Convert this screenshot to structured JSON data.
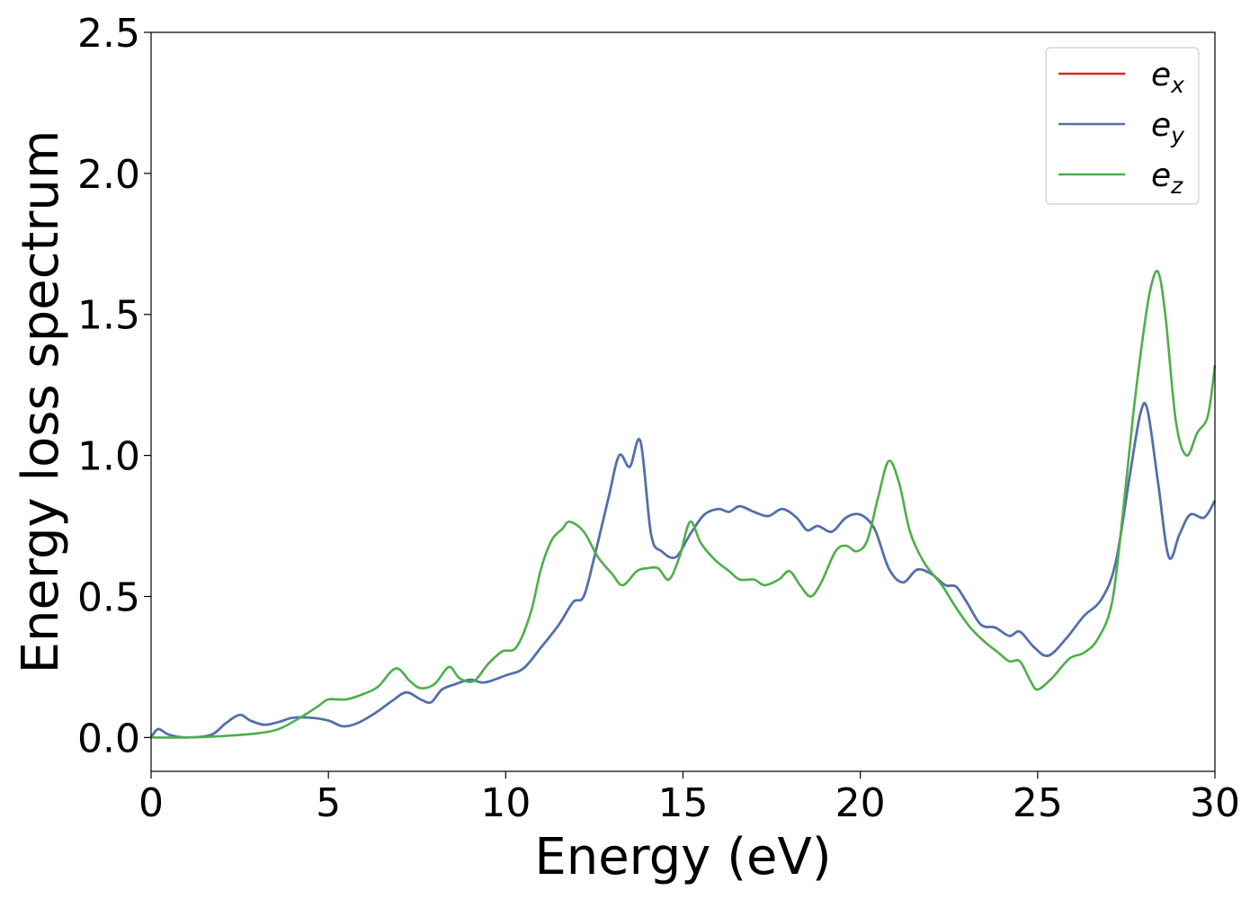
{
  "chart_data": {
    "type": "line",
    "xlabel": "Energy (eV)",
    "ylabel": "Energy loss spectrum",
    "xlim": [
      0,
      30
    ],
    "ylim": [
      -0.12,
      2.5
    ],
    "xticks": [
      0,
      5,
      10,
      15,
      20,
      25,
      30
    ],
    "yticks": [
      0.0,
      0.5,
      1.0,
      1.5,
      2.0,
      2.5
    ],
    "xtick_labels": [
      "0",
      "5",
      "10",
      "15",
      "20",
      "25",
      "30"
    ],
    "ytick_labels": [
      "0.0",
      "0.5",
      "1.0",
      "1.5",
      "2.0",
      "2.5"
    ],
    "grid": false,
    "legend_position": "top-right",
    "series": [
      {
        "name": "e",
        "subscript": "x",
        "color": "#d62728",
        "points": [
          [
            0,
            0.0
          ],
          [
            0.2,
            0.03
          ],
          [
            0.5,
            0.01
          ],
          [
            1.0,
            0.0
          ],
          [
            1.7,
            0.01
          ],
          [
            2.1,
            0.05
          ],
          [
            2.5,
            0.08
          ],
          [
            2.8,
            0.06
          ],
          [
            3.2,
            0.045
          ],
          [
            3.6,
            0.055
          ],
          [
            4.0,
            0.07
          ],
          [
            4.5,
            0.07
          ],
          [
            5.0,
            0.06
          ],
          [
            5.4,
            0.04
          ],
          [
            5.8,
            0.05
          ],
          [
            6.3,
            0.085
          ],
          [
            6.8,
            0.13
          ],
          [
            7.2,
            0.16
          ],
          [
            7.6,
            0.135
          ],
          [
            7.9,
            0.125
          ],
          [
            8.2,
            0.17
          ],
          [
            8.6,
            0.19
          ],
          [
            9.0,
            0.205
          ],
          [
            9.4,
            0.195
          ],
          [
            10.0,
            0.22
          ],
          [
            10.5,
            0.245
          ],
          [
            11.0,
            0.32
          ],
          [
            11.5,
            0.4
          ],
          [
            11.9,
            0.48
          ],
          [
            12.2,
            0.5
          ],
          [
            12.5,
            0.64
          ],
          [
            12.9,
            0.85
          ],
          [
            13.2,
            1.0
          ],
          [
            13.5,
            0.96
          ],
          [
            13.8,
            1.05
          ],
          [
            14.1,
            0.72
          ],
          [
            14.4,
            0.66
          ],
          [
            14.8,
            0.64
          ],
          [
            15.2,
            0.72
          ],
          [
            15.6,
            0.79
          ],
          [
            16.0,
            0.81
          ],
          [
            16.3,
            0.8
          ],
          [
            16.6,
            0.82
          ],
          [
            17.0,
            0.8
          ],
          [
            17.4,
            0.785
          ],
          [
            17.8,
            0.81
          ],
          [
            18.2,
            0.78
          ],
          [
            18.5,
            0.735
          ],
          [
            18.8,
            0.75
          ],
          [
            19.2,
            0.73
          ],
          [
            19.6,
            0.78
          ],
          [
            20.0,
            0.79
          ],
          [
            20.4,
            0.74
          ],
          [
            20.8,
            0.6
          ],
          [
            21.2,
            0.55
          ],
          [
            21.6,
            0.595
          ],
          [
            22.0,
            0.58
          ],
          [
            22.4,
            0.54
          ],
          [
            22.7,
            0.535
          ],
          [
            23.0,
            0.48
          ],
          [
            23.4,
            0.4
          ],
          [
            23.8,
            0.39
          ],
          [
            24.2,
            0.36
          ],
          [
            24.5,
            0.375
          ],
          [
            24.9,
            0.32
          ],
          [
            25.3,
            0.29
          ],
          [
            25.8,
            0.35
          ],
          [
            26.3,
            0.43
          ],
          [
            26.8,
            0.49
          ],
          [
            27.2,
            0.62
          ],
          [
            27.6,
            0.93
          ],
          [
            27.9,
            1.15
          ],
          [
            28.1,
            1.16
          ],
          [
            28.4,
            0.9
          ],
          [
            28.7,
            0.64
          ],
          [
            29.0,
            0.72
          ],
          [
            29.3,
            0.79
          ],
          [
            29.7,
            0.78
          ],
          [
            30.0,
            0.84
          ]
        ]
      },
      {
        "name": "e",
        "subscript": "y",
        "color": "#4c72b0",
        "points": [
          [
            0,
            0.0
          ],
          [
            0.2,
            0.03
          ],
          [
            0.5,
            0.01
          ],
          [
            1.0,
            0.0
          ],
          [
            1.7,
            0.01
          ],
          [
            2.1,
            0.05
          ],
          [
            2.5,
            0.08
          ],
          [
            2.8,
            0.06
          ],
          [
            3.2,
            0.045
          ],
          [
            3.6,
            0.055
          ],
          [
            4.0,
            0.07
          ],
          [
            4.5,
            0.07
          ],
          [
            5.0,
            0.06
          ],
          [
            5.4,
            0.04
          ],
          [
            5.8,
            0.05
          ],
          [
            6.3,
            0.085
          ],
          [
            6.8,
            0.13
          ],
          [
            7.2,
            0.16
          ],
          [
            7.6,
            0.135
          ],
          [
            7.9,
            0.125
          ],
          [
            8.2,
            0.17
          ],
          [
            8.6,
            0.19
          ],
          [
            9.0,
            0.205
          ],
          [
            9.4,
            0.195
          ],
          [
            10.0,
            0.22
          ],
          [
            10.5,
            0.245
          ],
          [
            11.0,
            0.32
          ],
          [
            11.5,
            0.4
          ],
          [
            11.9,
            0.48
          ],
          [
            12.2,
            0.5
          ],
          [
            12.5,
            0.64
          ],
          [
            12.9,
            0.85
          ],
          [
            13.2,
            1.0
          ],
          [
            13.5,
            0.96
          ],
          [
            13.8,
            1.05
          ],
          [
            14.1,
            0.72
          ],
          [
            14.4,
            0.66
          ],
          [
            14.8,
            0.64
          ],
          [
            15.2,
            0.72
          ],
          [
            15.6,
            0.79
          ],
          [
            16.0,
            0.81
          ],
          [
            16.3,
            0.8
          ],
          [
            16.6,
            0.82
          ],
          [
            17.0,
            0.8
          ],
          [
            17.4,
            0.785
          ],
          [
            17.8,
            0.81
          ],
          [
            18.2,
            0.78
          ],
          [
            18.5,
            0.735
          ],
          [
            18.8,
            0.75
          ],
          [
            19.2,
            0.73
          ],
          [
            19.6,
            0.78
          ],
          [
            20.0,
            0.79
          ],
          [
            20.4,
            0.74
          ],
          [
            20.8,
            0.6
          ],
          [
            21.2,
            0.55
          ],
          [
            21.6,
            0.595
          ],
          [
            22.0,
            0.58
          ],
          [
            22.4,
            0.54
          ],
          [
            22.7,
            0.535
          ],
          [
            23.0,
            0.48
          ],
          [
            23.4,
            0.4
          ],
          [
            23.8,
            0.39
          ],
          [
            24.2,
            0.36
          ],
          [
            24.5,
            0.375
          ],
          [
            24.9,
            0.32
          ],
          [
            25.3,
            0.29
          ],
          [
            25.8,
            0.35
          ],
          [
            26.3,
            0.43
          ],
          [
            26.8,
            0.49
          ],
          [
            27.2,
            0.62
          ],
          [
            27.6,
            0.93
          ],
          [
            27.9,
            1.15
          ],
          [
            28.1,
            1.16
          ],
          [
            28.4,
            0.9
          ],
          [
            28.7,
            0.64
          ],
          [
            29.0,
            0.72
          ],
          [
            29.3,
            0.79
          ],
          [
            29.7,
            0.78
          ],
          [
            30.0,
            0.84
          ]
        ]
      },
      {
        "name": "e",
        "subscript": "z",
        "color": "#4daf4a",
        "points": [
          [
            0,
            0.0
          ],
          [
            1.0,
            0.0
          ],
          [
            2.0,
            0.005
          ],
          [
            3.0,
            0.015
          ],
          [
            3.6,
            0.03
          ],
          [
            4.2,
            0.07
          ],
          [
            4.7,
            0.11
          ],
          [
            5.0,
            0.135
          ],
          [
            5.5,
            0.135
          ],
          [
            6.0,
            0.155
          ],
          [
            6.4,
            0.18
          ],
          [
            6.9,
            0.245
          ],
          [
            7.3,
            0.2
          ],
          [
            7.6,
            0.175
          ],
          [
            8.0,
            0.19
          ],
          [
            8.4,
            0.25
          ],
          [
            8.7,
            0.21
          ],
          [
            9.1,
            0.2
          ],
          [
            9.5,
            0.26
          ],
          [
            9.9,
            0.305
          ],
          [
            10.3,
            0.32
          ],
          [
            10.7,
            0.44
          ],
          [
            11.0,
            0.6
          ],
          [
            11.3,
            0.7
          ],
          [
            11.6,
            0.74
          ],
          [
            11.8,
            0.765
          ],
          [
            12.2,
            0.73
          ],
          [
            12.6,
            0.64
          ],
          [
            13.0,
            0.58
          ],
          [
            13.3,
            0.54
          ],
          [
            13.7,
            0.59
          ],
          [
            14.0,
            0.6
          ],
          [
            14.3,
            0.6
          ],
          [
            14.6,
            0.56
          ],
          [
            14.9,
            0.64
          ],
          [
            15.2,
            0.765
          ],
          [
            15.5,
            0.69
          ],
          [
            15.9,
            0.63
          ],
          [
            16.3,
            0.59
          ],
          [
            16.6,
            0.56
          ],
          [
            17.0,
            0.56
          ],
          [
            17.3,
            0.54
          ],
          [
            17.7,
            0.56
          ],
          [
            18.0,
            0.59
          ],
          [
            18.3,
            0.54
          ],
          [
            18.6,
            0.5
          ],
          [
            18.9,
            0.55
          ],
          [
            19.3,
            0.66
          ],
          [
            19.6,
            0.68
          ],
          [
            19.9,
            0.66
          ],
          [
            20.2,
            0.7
          ],
          [
            20.5,
            0.85
          ],
          [
            20.8,
            0.98
          ],
          [
            21.1,
            0.9
          ],
          [
            21.4,
            0.73
          ],
          [
            21.8,
            0.62
          ],
          [
            22.3,
            0.54
          ],
          [
            22.7,
            0.46
          ],
          [
            23.1,
            0.39
          ],
          [
            23.5,
            0.34
          ],
          [
            23.9,
            0.3
          ],
          [
            24.2,
            0.27
          ],
          [
            24.5,
            0.27
          ],
          [
            24.8,
            0.2
          ],
          [
            25.0,
            0.17
          ],
          [
            25.4,
            0.21
          ],
          [
            25.9,
            0.28
          ],
          [
            26.3,
            0.3
          ],
          [
            26.7,
            0.35
          ],
          [
            27.1,
            0.48
          ],
          [
            27.4,
            0.79
          ],
          [
            27.7,
            1.15
          ],
          [
            28.0,
            1.45
          ],
          [
            28.2,
            1.6
          ],
          [
            28.4,
            1.65
          ],
          [
            28.6,
            1.5
          ],
          [
            28.9,
            1.12
          ],
          [
            29.2,
            1.0
          ],
          [
            29.5,
            1.08
          ],
          [
            29.8,
            1.14
          ],
          [
            30.0,
            1.32
          ]
        ]
      }
    ]
  }
}
